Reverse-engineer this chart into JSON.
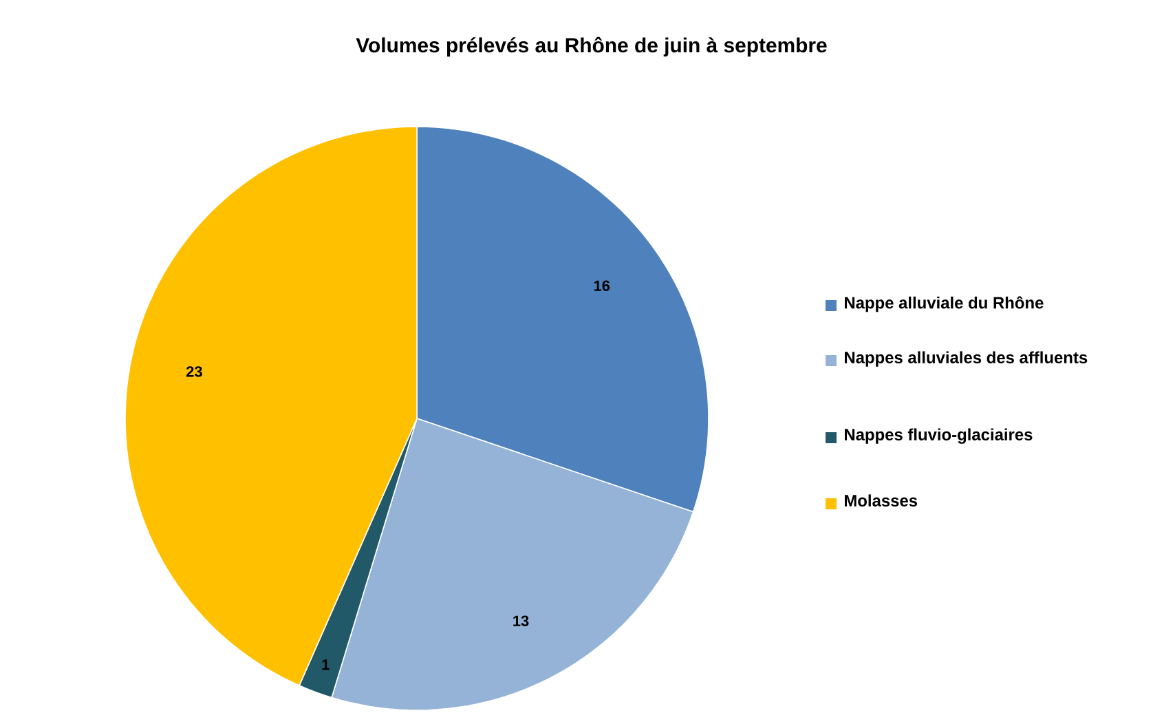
{
  "chart_data": {
    "type": "pie",
    "title": "Volumes prélevés au Rhône de juin à septembre",
    "categories": [
      "Nappe alluviale du Rhône",
      "Nappes alluviales des affluents",
      "Nappes fluvio-glaciaires",
      "Molasses"
    ],
    "values": [
      16,
      13,
      1,
      23
    ],
    "colors": [
      "#4f81bd",
      "#95b3d7",
      "#215968",
      "#ffc000"
    ],
    "data_labels": true,
    "legend": "right"
  }
}
